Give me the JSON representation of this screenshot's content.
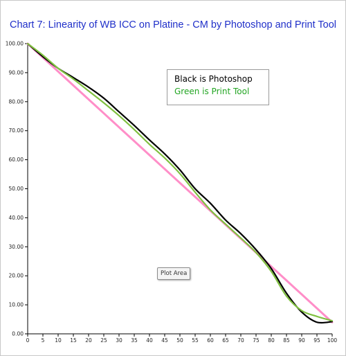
{
  "chart_data": {
    "type": "line",
    "title": "Chart 7:  Linearity of WB ICC on Platine - CM by Photoshop and Print Tool",
    "xlabel": "",
    "ylabel": "",
    "xlim": [
      0,
      100
    ],
    "ylim": [
      0,
      100
    ],
    "x_ticks": [
      0,
      5,
      10,
      15,
      20,
      25,
      30,
      35,
      40,
      45,
      50,
      55,
      60,
      65,
      70,
      75,
      80,
      85,
      90,
      95,
      100
    ],
    "y_ticks": [
      0,
      10,
      20,
      30,
      40,
      50,
      60,
      70,
      80,
      90,
      100
    ],
    "y_tick_labels": [
      "0.00",
      "10.00",
      "20.00",
      "30.00",
      "40.00",
      "50.00",
      "60.00",
      "70.00",
      "80.00",
      "90.00",
      "100.00"
    ],
    "grid": false,
    "legend_placement": "upper-center",
    "legend_lines": [
      "Black is Photoshop",
      "Green is Print Tool"
    ],
    "x": [
      0,
      5,
      10,
      15,
      20,
      25,
      30,
      35,
      40,
      45,
      50,
      55,
      60,
      65,
      70,
      75,
      80,
      85,
      90,
      95,
      100
    ],
    "series": [
      {
        "color": "#ff8ec8",
        "values": [
          100,
          95.2,
          90.4,
          85.6,
          80.8,
          76.0,
          71.2,
          66.4,
          61.6,
          56.8,
          52.0,
          47.2,
          42.4,
          37.6,
          32.8,
          28.0,
          23.2,
          18.4,
          13.6,
          8.8,
          4.0
        ]
      },
      {
        "color": "#000000",
        "values": [
          100,
          95.5,
          91.5,
          88.3,
          85.0,
          81.2,
          76.5,
          71.8,
          66.8,
          62.0,
          56.5,
          50.0,
          45.0,
          39.2,
          34.5,
          29.0,
          22.5,
          14.0,
          7.5,
          4.0,
          4.2
        ]
      },
      {
        "color": "#80c040",
        "values": [
          100,
          96.0,
          91.5,
          87.8,
          83.7,
          79.6,
          75.2,
          70.4,
          65.3,
          60.6,
          55.2,
          48.8,
          42.7,
          37.8,
          33.0,
          28.0,
          21.5,
          13.0,
          8.0,
          6.0,
          4.5
        ]
      }
    ]
  },
  "tooltip": {
    "label": "Plot Area"
  }
}
